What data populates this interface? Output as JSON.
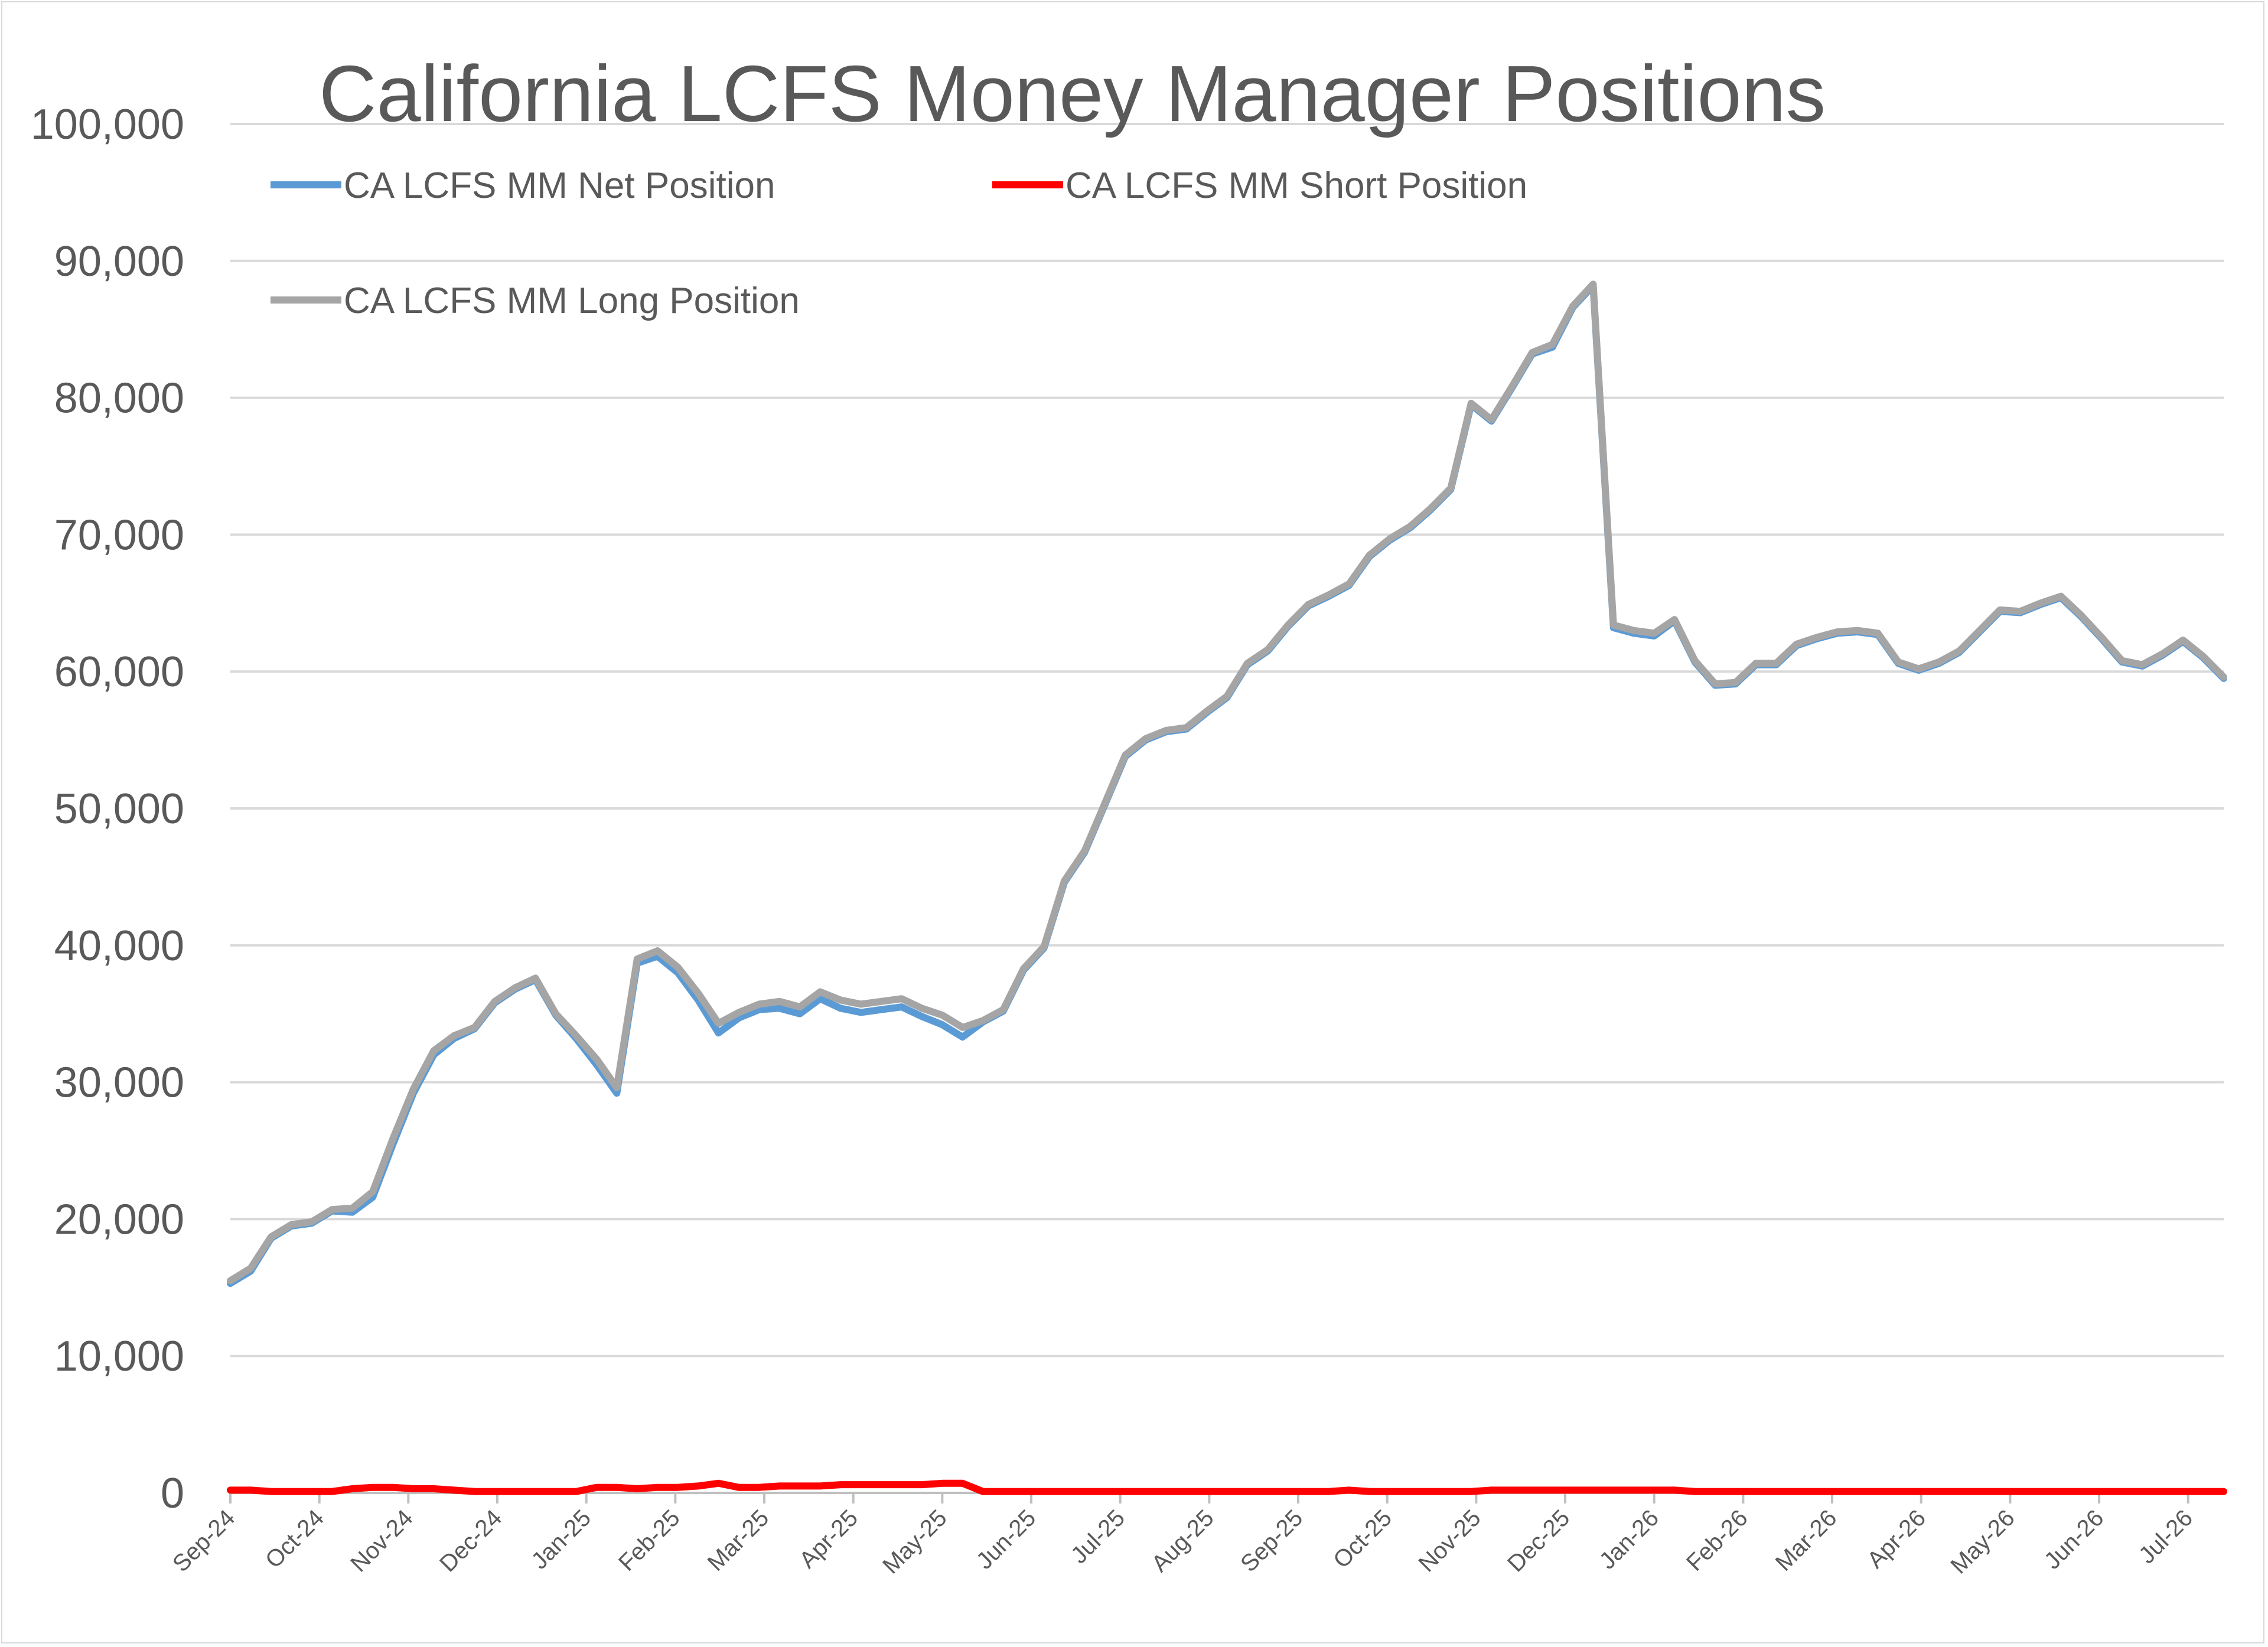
{
  "chart_data": {
    "type": "line",
    "title": "California LCFS Money Manager Positions",
    "xlabel": "",
    "ylabel": "",
    "ylim": [
      0,
      100000
    ],
    "y_ticks": [
      "0",
      "10,000",
      "20,000",
      "30,000",
      "40,000",
      "50,000",
      "60,000",
      "70,000",
      "80,000",
      "90,000",
      "100,000"
    ],
    "x_tick_labels": [
      "Sep-24",
      "Oct-24",
      "Nov-24",
      "Dec-24",
      "Jan-25",
      "Feb-25",
      "Mar-25",
      "Apr-25",
      "May-25",
      "Jun-25",
      "Jul-25",
      "Aug-25",
      "Sep-25",
      "Oct-25",
      "Nov-25",
      "Dec-25",
      "Jan-26",
      "Feb-26",
      "Mar-26",
      "Apr-26",
      "May-26",
      "Jun-26",
      "Jul-26"
    ],
    "grid": true,
    "legend_position": "top-left",
    "colors": {
      "net": "#5b9bd5",
      "short": "#ff0000",
      "long": "#a5a5a5",
      "grid": "#d9d9d9",
      "axis": "#bfbfbf",
      "text": "#595959"
    },
    "series": [
      {
        "name": "CA LCFS MM Net Position",
        "values": [
          15300,
          16200,
          18600,
          19500,
          19700,
          20600,
          20500,
          21600,
          25500,
          29200,
          32000,
          33200,
          33900,
          35800,
          36800,
          37500,
          34900,
          33200,
          31300,
          29200,
          38700,
          39200,
          38000,
          36000,
          33600,
          34700,
          35300,
          35400,
          35000,
          36100,
          35400,
          35100,
          35300,
          35500,
          34800,
          34200,
          33300,
          34400,
          35200,
          38200,
          39800,
          44600,
          46800,
          50300,
          53800,
          55000,
          55600,
          55800,
          57000,
          58100,
          60500,
          61500,
          63300,
          64800,
          65500,
          66300,
          68400,
          69600,
          70500,
          71800,
          73300,
          79500,
          78300,
          80700,
          83200,
          83700,
          86600,
          88200,
          63200,
          62800,
          62600,
          63700,
          60700,
          59000,
          59100,
          60500,
          60500,
          61900,
          62400,
          62800,
          62900,
          62700,
          60600,
          60100,
          60600,
          61400,
          62900,
          64400,
          64300,
          64900,
          65400,
          64000,
          62400,
          60700,
          60400,
          61200,
          62200,
          61000,
          59500
        ]
      },
      {
        "name": "CA LCFS MM Short Position",
        "values": [
          200,
          200,
          100,
          100,
          100,
          100,
          300,
          400,
          400,
          300,
          300,
          200,
          100,
          100,
          100,
          100,
          100,
          100,
          400,
          400,
          300,
          400,
          400,
          500,
          700,
          400,
          400,
          500,
          500,
          500,
          600,
          600,
          600,
          600,
          600,
          700,
          700,
          100,
          100,
          100,
          100,
          100,
          100,
          100,
          100,
          100,
          100,
          100,
          100,
          100,
          100,
          100,
          100,
          100,
          100,
          200,
          100,
          100,
          100,
          100,
          100,
          100,
          200,
          200,
          200,
          200,
          200,
          200,
          200,
          200,
          200,
          200,
          100,
          100,
          100,
          100,
          100,
          100,
          100,
          100,
          100,
          100,
          100,
          100,
          100,
          100,
          100,
          100,
          100,
          100,
          100,
          100,
          100,
          100,
          100,
          100,
          100,
          100,
          100
        ]
      },
      {
        "name": "CA LCFS MM Long Position",
        "values": [
          15500,
          16400,
          18700,
          19600,
          19800,
          20700,
          20800,
          22000,
          25900,
          29500,
          32300,
          33400,
          34000,
          35900,
          36900,
          37600,
          35000,
          33400,
          31700,
          29600,
          39000,
          39600,
          38400,
          36500,
          34300,
          35100,
          35700,
          35900,
          35500,
          36600,
          36000,
          35700,
          35900,
          36100,
          35400,
          34900,
          34000,
          34500,
          35300,
          38300,
          39900,
          44700,
          46900,
          50400,
          53900,
          55100,
          55700,
          55900,
          57100,
          58200,
          60600,
          61600,
          63400,
          64900,
          65600,
          66400,
          68500,
          69700,
          70600,
          71900,
          73400,
          79600,
          78400,
          80800,
          83300,
          83900,
          86700,
          88300,
          63400,
          63000,
          62800,
          63800,
          60800,
          59100,
          59200,
          60600,
          60600,
          62000,
          62500,
          62900,
          63000,
          62800,
          60700,
          60200,
          60700,
          61500,
          63000,
          64500,
          64400,
          65000,
          65500,
          64100,
          62500,
          60800,
          60500,
          61300,
          62300,
          61100,
          59600
        ]
      }
    ]
  }
}
